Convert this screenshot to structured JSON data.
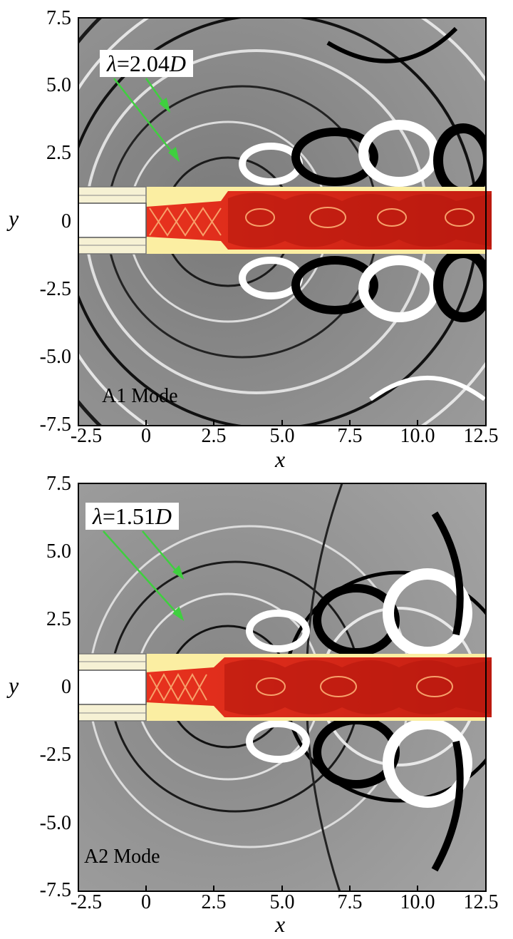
{
  "figure": {
    "panels": [
      {
        "id": "A1",
        "mode_label": "A1 Mode",
        "lambda_prefix": "λ",
        "lambda_value": "=2.04",
        "lambda_unit": "D",
        "x_label": "x",
        "y_label": "y",
        "x_ticks": [
          "-2.5",
          "0",
          "2.5",
          "5.0",
          "7.5",
          "10.0",
          "12.5"
        ],
        "y_ticks": [
          "7.5",
          "5.0",
          "2.5",
          "0",
          "-2.5",
          "-5.0",
          "-7.5"
        ]
      },
      {
        "id": "A2",
        "mode_label": "A2 Mode",
        "lambda_prefix": "λ",
        "lambda_value": "=1.51",
        "lambda_unit": "D",
        "x_label": "x",
        "y_label": "y",
        "x_ticks": [
          "-2.5",
          "0",
          "2.5",
          "5.0",
          "7.5",
          "10.0",
          "12.5"
        ],
        "y_ticks": [
          "7.5",
          "5.0",
          "2.5",
          "0",
          "-2.5",
          "-5.0",
          "-7.5"
        ]
      }
    ],
    "colors": {
      "background_field": "#8c8c8c",
      "jet_core": "#d7261b",
      "jet_band": "#fbeea2",
      "arrow": "#3fcf3f"
    }
  }
}
